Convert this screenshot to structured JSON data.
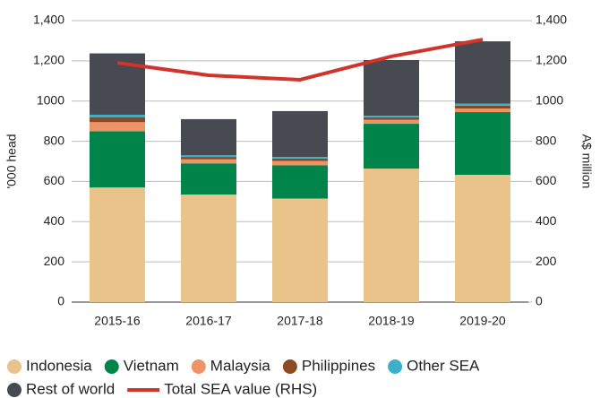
{
  "chart_data": {
    "type": "bar",
    "categories": [
      "2015-16",
      "2016-17",
      "2017-18",
      "2018-19",
      "2019-20"
    ],
    "stacked": true,
    "series": [
      {
        "name": "Indonesia",
        "color": "#e9c389",
        "values": [
          570,
          535,
          515,
          664,
          633
        ]
      },
      {
        "name": "Vietnam",
        "color": "#00844a",
        "values": [
          280,
          155,
          165,
          223,
          312
        ]
      },
      {
        "name": "Malaysia",
        "color": "#ed9366",
        "values": [
          45,
          20,
          22,
          20,
          18
        ]
      },
      {
        "name": "Philippines",
        "color": "#8c4a22",
        "values": [
          25,
          12,
          12,
          12,
          14
        ]
      },
      {
        "name": "Other SEA",
        "color": "#3ab1c8",
        "values": [
          12,
          8,
          8,
          8,
          10
        ]
      },
      {
        "name": "Rest of world",
        "color": "#474a50",
        "values": [
          305,
          180,
          228,
          277,
          310
        ]
      },
      {
        "name": "Total SEA value (RHS)",
        "type": "line",
        "axis": "y2",
        "color": "#d0342c",
        "values": [
          1190,
          1128,
          1106,
          1222,
          1306
        ]
      }
    ],
    "ylabel": "'000 head",
    "y2label": "A$ million",
    "ylim": [
      0,
      1400
    ],
    "yticks": [
      0,
      200,
      400,
      600,
      800,
      1000,
      {
        "value": 1200,
        "label": "1,200"
      },
      {
        "value": 1400,
        "label": "1,400"
      }
    ],
    "y2lim": [
      0,
      1400
    ],
    "y2ticks": [
      0,
      200,
      400,
      600,
      800,
      1000,
      {
        "value": 1200,
        "label": "1,200"
      },
      {
        "value": 1400,
        "label": "1,400"
      }
    ],
    "grid": true,
    "legend": "bottom"
  }
}
